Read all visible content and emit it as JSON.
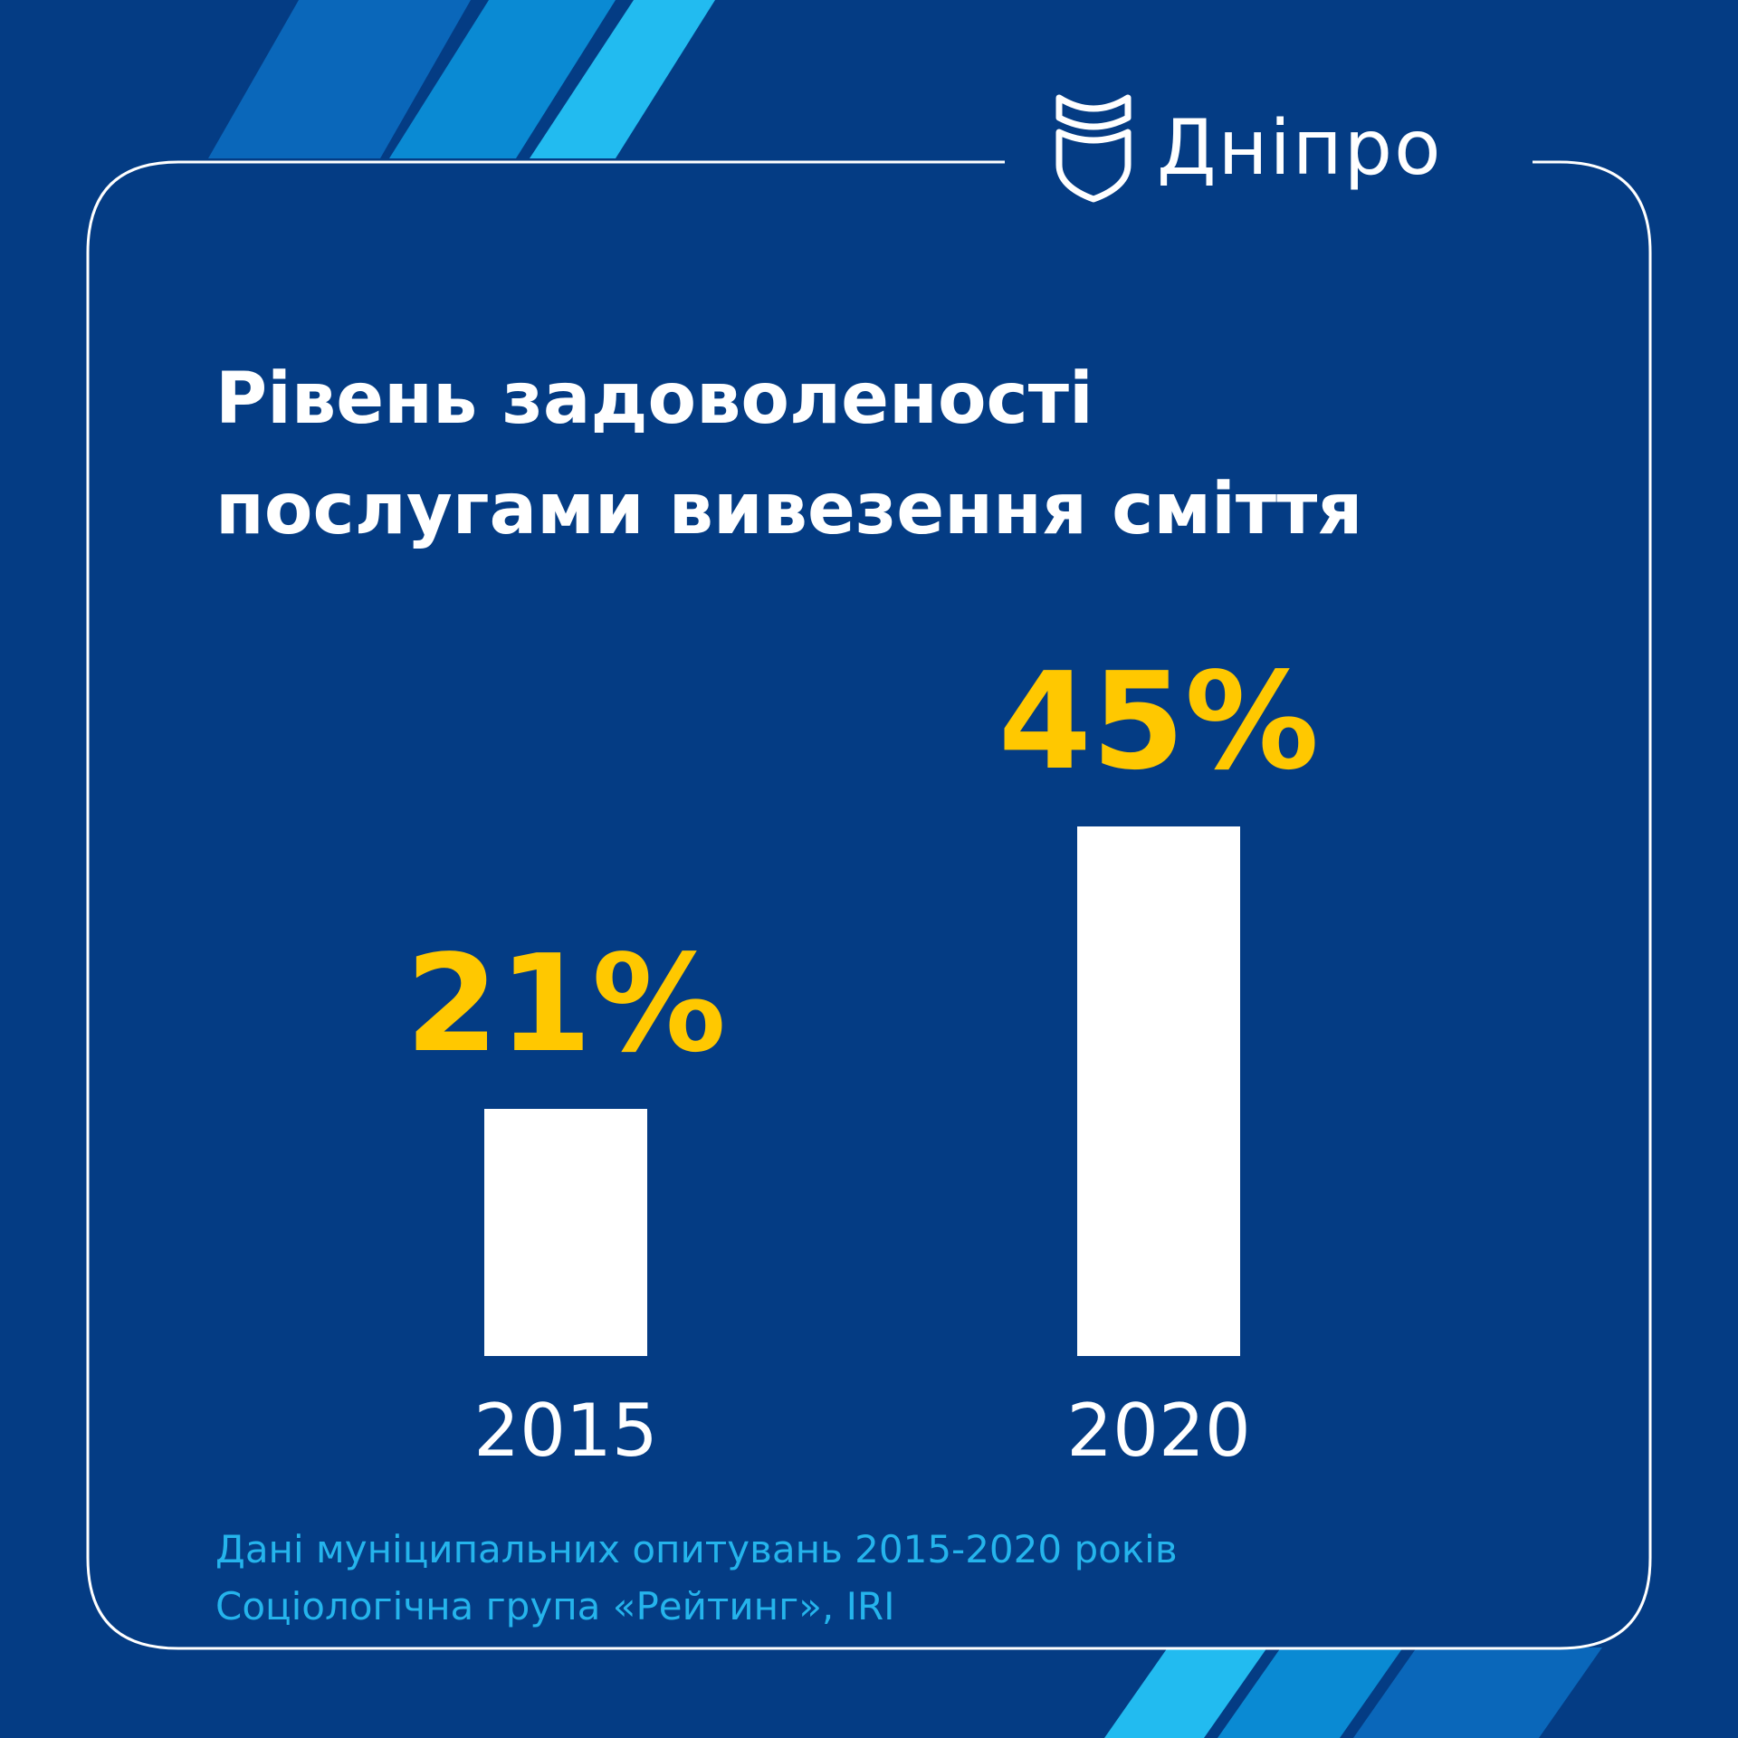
{
  "brand": {
    "name": "Дніпро",
    "colors": {
      "background": "#043c84",
      "accent": "#ffc800",
      "bar": "#ffffff",
      "source_text": "#25b4ec",
      "stripe_1": "#0a67ba",
      "stripe_2": "#0a8ad3",
      "stripe_3": "#22bbf0"
    }
  },
  "title": {
    "line1": "Рівень задоволеності",
    "line2": "послугами вивезення сміття"
  },
  "chart_data": {
    "type": "bar",
    "categories": [
      "2015",
      "2020"
    ],
    "values": [
      21,
      45
    ],
    "value_labels": [
      "21%",
      "45%"
    ],
    "ylim": [
      0,
      50
    ],
    "grid": false
  },
  "source": {
    "line1": "Дані муніципальних опитувань 2015-2020 років",
    "line2": "Соціологічна група «Рейтинг», IRI"
  }
}
